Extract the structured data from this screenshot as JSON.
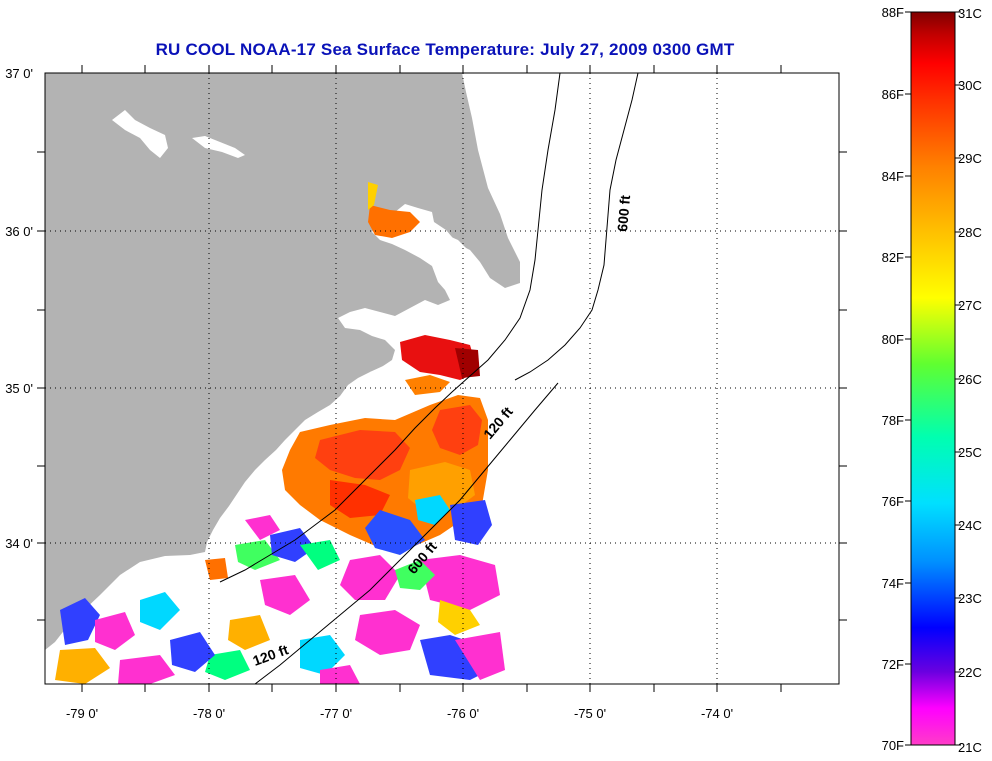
{
  "title": "RU COOL  NOAA-17  Sea Surface Temperature:  July 27, 2009 0300 GMT",
  "map": {
    "lon_labels": [
      "-79 0'",
      "-78 0'",
      "-77 0'",
      "-76 0'",
      "-75 0'",
      "-74 0'"
    ],
    "lat_labels": [
      "37 0'",
      "36 0'",
      "35 0'",
      "34 0'"
    ],
    "contour_labels": [
      "600 ft",
      "120 ft",
      "600 ft",
      "120 ft"
    ],
    "colors": {
      "land": "#b3b3b3",
      "ocean_nodata": "#ffffff",
      "frame": "#000000",
      "grid": "#000000"
    }
  },
  "colorbar": {
    "f_labels": [
      "88F",
      "86F",
      "84F",
      "82F",
      "80F",
      "78F",
      "76F",
      "74F",
      "72F",
      "70F"
    ],
    "c_labels": [
      "31C",
      "30C",
      "29C",
      "28C",
      "27C",
      "26C",
      "25C",
      "24C",
      "23C",
      "22C",
      "21C"
    ],
    "colors": [
      "#ff3cc8",
      "#ff00ff",
      "#6a00e0",
      "#0000ff",
      "#0090ff",
      "#00e0ff",
      "#00ffb0",
      "#60ff30",
      "#ffff00",
      "#ffc000",
      "#ff8000",
      "#ff3000",
      "#ff0000",
      "#c00000",
      "#800000"
    ]
  }
}
